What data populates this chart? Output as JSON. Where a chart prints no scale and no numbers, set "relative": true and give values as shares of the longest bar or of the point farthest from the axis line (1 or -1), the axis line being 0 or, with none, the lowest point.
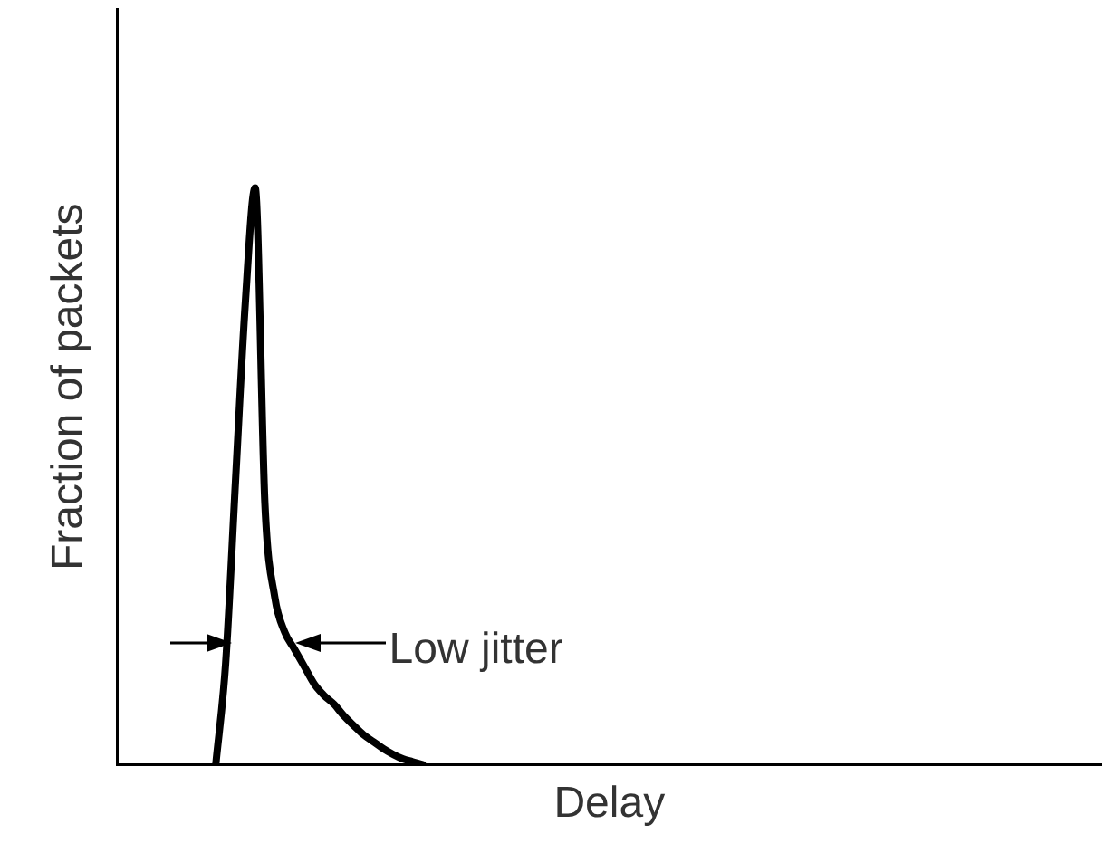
{
  "chart_data": {
    "type": "line",
    "relative": true,
    "xlabel": "Delay",
    "ylabel": "Fraction of packets",
    "annotations": [
      "Low jitter"
    ],
    "legend": false,
    "grid": false,
    "marker": "none",
    "line_style": "solid",
    "categories": [
      null,
      null,
      null,
      null,
      null,
      null,
      null,
      null,
      null,
      null,
      null,
      null,
      null,
      null,
      null,
      null,
      null,
      null,
      null,
      null,
      null,
      null,
      null,
      null,
      null,
      null,
      null,
      null,
      null,
      null,
      null,
      null,
      null,
      null,
      null,
      null,
      null,
      null,
      null,
      null,
      null,
      null,
      null,
      null,
      null,
      null,
      null,
      null,
      null,
      null,
      null,
      null,
      null,
      null,
      null,
      null,
      null,
      null,
      null,
      null,
      null,
      null,
      null,
      null,
      null,
      null,
      null,
      null,
      null,
      null,
      null,
      null,
      null,
      null,
      null,
      null,
      null,
      null,
      null,
      null,
      null,
      null,
      null,
      null,
      null,
      null,
      null,
      null,
      null,
      null,
      null,
      null,
      null,
      null,
      null,
      null,
      null,
      null,
      null,
      null,
      null
    ],
    "series": [
      {
        "color": "#000000",
        "values": [
          null,
          null,
          null,
          null,
          null,
          null,
          null,
          null,
          null,
          null,
          0,
          0.175,
          0.49,
          0.8,
          1,
          0.45,
          0.29,
          0.23,
          0.2,
          0.17,
          0.14,
          0.12,
          0.105,
          0.085,
          0.068,
          0.052,
          0.04,
          0.028,
          0.018,
          0.01,
          0.005,
          0,
          null,
          null,
          null,
          null,
          null,
          null,
          null,
          null,
          null,
          null,
          null,
          null,
          null,
          null,
          null,
          null,
          null,
          null,
          null,
          null,
          null,
          null,
          null,
          null,
          null,
          null,
          null,
          null,
          null,
          null,
          null,
          null,
          null,
          null,
          null,
          null,
          null,
          null,
          null,
          null,
          null,
          null,
          null,
          null,
          null,
          null,
          null,
          null,
          null,
          null,
          null,
          null,
          null,
          null,
          null,
          null,
          null,
          null,
          null,
          null,
          null,
          null,
          null,
          null,
          null,
          null,
          null,
          null,
          null
        ]
      }
    ]
  }
}
